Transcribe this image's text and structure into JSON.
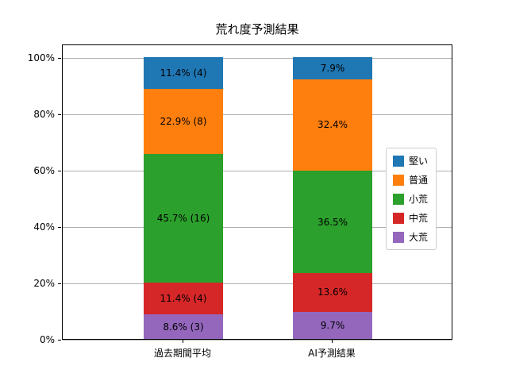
{
  "chart_data": {
    "type": "bar",
    "stacked": true,
    "title": "荒れ度予測結果",
    "categories": [
      "過去期間平均",
      "AI予測結果"
    ],
    "series": [
      {
        "name": "大荒",
        "color": "#9467bd",
        "values": [
          8.6,
          9.7
        ],
        "labels": [
          "8.6% (3)",
          "9.7%"
        ]
      },
      {
        "name": "中荒",
        "color": "#d62728",
        "values": [
          11.4,
          13.6
        ],
        "labels": [
          "11.4% (4)",
          "13.6%"
        ]
      },
      {
        "name": "小荒",
        "color": "#2ca02c",
        "values": [
          45.7,
          36.5
        ],
        "labels": [
          "45.7% (16)",
          "36.5%"
        ]
      },
      {
        "name": "普通",
        "color": "#ff7f0e",
        "values": [
          22.9,
          32.4
        ],
        "labels": [
          "22.9% (8)",
          "32.4%"
        ]
      },
      {
        "name": "堅い",
        "color": "#1f77b4",
        "values": [
          11.4,
          7.9
        ],
        "labels": [
          "11.4% (4)",
          "7.9%"
        ]
      }
    ],
    "legend": [
      "堅い",
      "普通",
      "小荒",
      "中荒",
      "大荒"
    ],
    "y_ticks": [
      "0%",
      "20%",
      "40%",
      "60%",
      "80%",
      "100%"
    ],
    "ylim": [
      0,
      100
    ],
    "grid": "horizontal",
    "legend_position": "center-right"
  }
}
